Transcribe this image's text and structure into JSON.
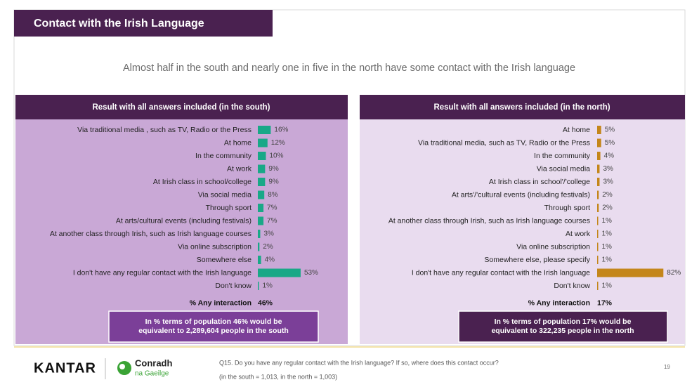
{
  "header": {
    "title": "Contact with the Irish Language",
    "subtitle": "Almost half in the south and nearly one in five in the north have some contact with the Irish language"
  },
  "chart_data": [
    {
      "type": "bar",
      "title": "Result with all answers included (in the south)",
      "color": "#19a887",
      "categories": [
        "Via traditional media , such as TV, Radio or the Press",
        "At home",
        "In the community",
        "At work",
        "At Irish class in school/college",
        "Via social media",
        "Through sport",
        "At arts/cultural events (including festivals)",
        "At another class through Irish, such as Irish language courses",
        "Via online subscription",
        "Somewhere else",
        "I don't have any regular contact with the Irish language",
        "Don't know"
      ],
      "values": [
        16,
        12,
        10,
        9,
        9,
        8,
        7,
        7,
        3,
        2,
        4,
        53,
        1
      ],
      "value_labels": [
        "16%",
        "12%",
        "10%",
        "9%",
        "9%",
        "8%",
        "7%",
        "7%",
        "3%",
        "2%",
        "4%",
        "53%",
        "1%"
      ],
      "summary_label": "% Any interaction",
      "summary_value": "46%",
      "note": [
        "In % terms of population 46% would be",
        "equivalent to 2,289,604 people in the south"
      ]
    },
    {
      "type": "bar",
      "title": "Result with all answers included (in the north)",
      "color": "#c4861a",
      "categories": [
        "At home",
        "Via traditional media, such as TV, Radio or the Press",
        "In the community",
        "Via social media",
        "At Irish class in school'/'college",
        "At arts'/'cultural events (including festivals)",
        "Through sport",
        "At another class through Irish, such as Irish language courses",
        "At work",
        "Via online subscription",
        "Somewhere else, please specify",
        "I don't have any regular contact with the Irish language",
        "Don't know"
      ],
      "values": [
        5,
        5,
        4,
        3,
        3,
        2,
        2,
        1,
        1,
        1,
        1,
        82,
        1
      ],
      "value_labels": [
        "5%",
        "5%",
        "4%",
        "3%",
        "3%",
        "2%",
        "2%",
        "1%",
        "1%",
        "1%",
        "1%",
        "82%",
        "1%"
      ],
      "summary_label": "% Any interaction",
      "summary_value": "17%",
      "note": [
        "In % terms of population 17% would be",
        "equivalent to 322,235 people in the north"
      ]
    }
  ],
  "footer": {
    "brand": "KANTAR",
    "partner_top": "Conradh",
    "partner_bottom": "na Gaeilge",
    "question": "Q15. Do you have any regular contact with the Irish language? If so, where does this contact occur?",
    "base": "(in the south = 1,013, in the north = 1,003)",
    "page": "19"
  }
}
